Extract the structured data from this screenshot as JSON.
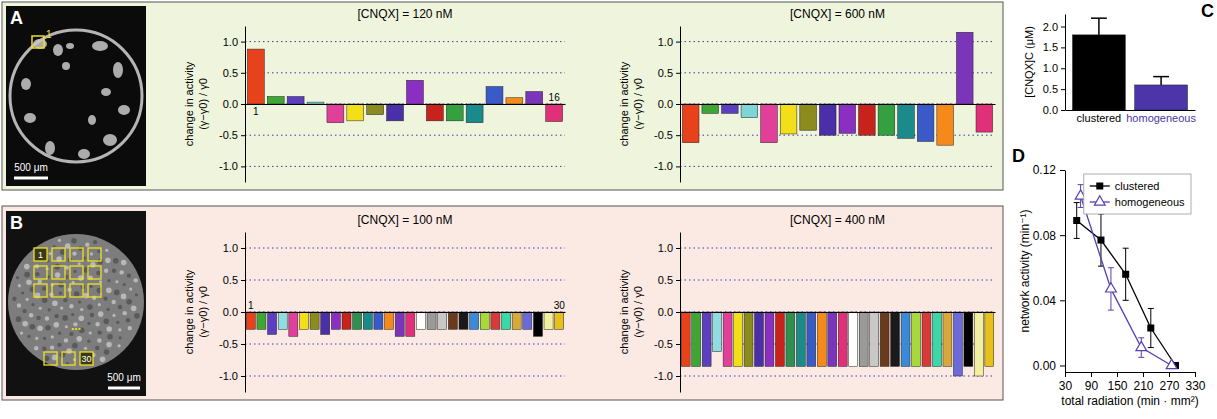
{
  "panel_labels": [
    "A",
    "B",
    "C",
    "D"
  ],
  "images": [
    {
      "scale_bar": "500 μm",
      "roi_labels": [
        "1"
      ]
    },
    {
      "scale_bar": "500 μm",
      "roi_labels": [
        "1",
        "...",
        "30"
      ]
    }
  ],
  "chart_data": [
    {
      "type": "bar",
      "title": "[CNQX] = 120 nM",
      "y_label": [
        "change in activity",
        "(γ−γ0) / γ0"
      ],
      "categories": [
        "1",
        null,
        null,
        null,
        null,
        null,
        null,
        null,
        null,
        null,
        null,
        null,
        null,
        null,
        null,
        "16"
      ],
      "values": [
        0.88,
        0.12,
        0.12,
        0.03,
        -0.3,
        -0.27,
        -0.17,
        -0.27,
        0.38,
        -0.27,
        -0.27,
        -0.3,
        0.28,
        0.1,
        0.2,
        -0.28
      ],
      "colors": [
        "#e8421c",
        "#3fa535",
        "#5b3fc0",
        "#7fd4d8",
        "#e0409a",
        "#f2df1a",
        "#8c8c1e",
        "#4b2fa8",
        "#8b2fc2",
        "#c8221c",
        "#35a040",
        "#1a8a8a",
        "#3a5ac8",
        "#f58a1a",
        "#7b35b8",
        "#e0307a"
      ],
      "ylim": [
        -1.25,
        1.25
      ],
      "yticks": [
        {
          "value": -1,
          "label": "-1.0"
        },
        -0.5,
        {
          "value": 0,
          "label": "0.0"
        },
        0.5,
        {
          "value": 1,
          "label": "1.0"
        }
      ],
      "grid": true
    },
    {
      "type": "bar",
      "title": "[CNQX] = 600 nM",
      "y_label": [
        "change in activity",
        "(γ−γ0) / γ0"
      ],
      "categories": [
        null,
        null,
        null,
        null,
        null,
        null,
        null,
        null,
        null,
        null,
        null,
        null,
        null,
        null,
        null,
        null
      ],
      "values": [
        -0.62,
        -0.15,
        -0.15,
        -0.22,
        -0.62,
        -0.48,
        -0.42,
        -0.5,
        -0.47,
        -0.5,
        -0.5,
        -0.55,
        -0.6,
        -0.66,
        1.15,
        -0.45
      ],
      "colors": [
        "#e8421c",
        "#3fa535",
        "#5b3fc0",
        "#7fd4d8",
        "#e0409a",
        "#f2df1a",
        "#8c8c1e",
        "#4b2fa8",
        "#8b2fc2",
        "#c8221c",
        "#35a040",
        "#1a8a8a",
        "#3a5ac8",
        "#f58a1a",
        "#7b35b8",
        "#e0307a"
      ],
      "ylim": [
        -1.25,
        1.25
      ],
      "yticks": [
        {
          "value": -1,
          "label": "-1.0"
        },
        -0.5,
        {
          "value": 0,
          "label": "0.0"
        },
        0.5,
        {
          "value": 1,
          "label": "1.0"
        }
      ],
      "grid": true
    },
    {
      "type": "bar",
      "title": "[CNQX] = 100 nM",
      "y_label": [
        "change in activity",
        "(γ−γ0) / γ0"
      ],
      "categories": [
        "1",
        null,
        null,
        null,
        null,
        null,
        null,
        null,
        null,
        null,
        null,
        null,
        null,
        null,
        null,
        null,
        null,
        null,
        null,
        null,
        null,
        null,
        null,
        null,
        null,
        null,
        null,
        null,
        null,
        "30"
      ],
      "values": [
        -0.27,
        -0.27,
        -0.35,
        -0.27,
        -0.38,
        -0.27,
        -0.27,
        -0.35,
        -0.27,
        -0.27,
        -0.27,
        -0.27,
        -0.27,
        -0.27,
        -0.38,
        -0.38,
        -0.27,
        -0.27,
        -0.27,
        -0.27,
        -0.27,
        -0.27,
        -0.27,
        -0.27,
        -0.27,
        -0.27,
        -0.27,
        -0.38,
        -0.27,
        -0.27
      ],
      "colors": [
        "#e8421c",
        "#3fa535",
        "#5b3fc0",
        "#8fdde0",
        "#e0409a",
        "#f2df1a",
        "#8c8c1e",
        "#4b2fa8",
        "#8b2fc2",
        "#c8221c",
        "#2f8f4f",
        "#1a8a8a",
        "#3a5ac8",
        "#f58a1a",
        "#7b35b8",
        "#e0307a",
        "#ffffff",
        "#9a9a9a",
        "#c8c8c8",
        "#6a3a1a",
        "#1a1a1a",
        "#3a8ad8",
        "#a8d83a",
        "#d83a3a",
        "#3ad8a8",
        "#d8a83a",
        "#6a6ad8",
        "#000000",
        "#f0f0a0",
        "#e8c01c"
      ],
      "ylim": [
        -1.25,
        1.25
      ],
      "yticks": [
        {
          "value": -1,
          "label": "-1.0"
        },
        -0.5,
        {
          "value": 0,
          "label": "0.0"
        },
        0.5,
        {
          "value": 1,
          "label": "1.0"
        }
      ],
      "grid": true
    },
    {
      "type": "bar",
      "title": "[CNQX] = 400 nM",
      "y_label": [
        "change in activity",
        "(γ−γ0) / γ0"
      ],
      "categories": [
        null,
        null,
        null,
        null,
        null,
        null,
        null,
        null,
        null,
        null,
        null,
        null,
        null,
        null,
        null,
        null,
        null,
        null,
        null,
        null,
        null,
        null,
        null,
        null,
        null,
        null,
        null,
        null,
        null,
        null
      ],
      "values": [
        -0.85,
        -0.85,
        -0.85,
        -0.62,
        -0.85,
        -0.85,
        -0.85,
        -0.85,
        -0.85,
        -0.85,
        -0.85,
        -0.85,
        -0.85,
        -0.85,
        -0.85,
        -0.85,
        -0.85,
        -0.85,
        -0.85,
        -0.85,
        -0.85,
        -0.85,
        -0.85,
        -0.85,
        -0.85,
        -0.85,
        -1.0,
        -0.85,
        -1.0,
        -0.85
      ],
      "colors": [
        "#e8421c",
        "#3fa535",
        "#5b3fc0",
        "#8fdde0",
        "#e0409a",
        "#f2df1a",
        "#8c8c1e",
        "#4b2fa8",
        "#8b2fc2",
        "#c8221c",
        "#2f8f4f",
        "#1a8a8a",
        "#3a5ac8",
        "#f58a1a",
        "#7b35b8",
        "#e0307a",
        "#ffffff",
        "#9a9a9a",
        "#c8c8c8",
        "#6a3a1a",
        "#1a1a1a",
        "#3a8ad8",
        "#a8d83a",
        "#d83a3a",
        "#3ad8a8",
        "#d8a83a",
        "#6a6ad8",
        "#000000",
        "#f0f0a0",
        "#e8c01c"
      ],
      "ylim": [
        -1.25,
        1.25
      ],
      "yticks": [
        {
          "value": -1,
          "label": "-1.0"
        },
        -0.5,
        {
          "value": 0,
          "label": "0.0"
        },
        0.5,
        {
          "value": 1,
          "label": "1.0"
        }
      ],
      "grid": true
    },
    {
      "type": "bar",
      "y_label": "[CNQX]C  (μM)",
      "categories": [
        "clustered",
        "homogeneous"
      ],
      "values": [
        1.8,
        0.6
      ],
      "errors": [
        0.4,
        0.2
      ],
      "colors": [
        "#000000",
        "#4b35a8"
      ],
      "ylim": [
        0,
        2.3
      ],
      "yticks": [
        {
          "value": 0,
          "label": "0.0"
        },
        0.5,
        {
          "value": 1,
          "label": "1.0"
        },
        1.5,
        {
          "value": 2,
          "label": "2.0"
        }
      ],
      "grid": false
    },
    {
      "type": "line",
      "x_label": "total radiation  (min · mm²)",
      "y_label": "network activity  (min⁻¹)",
      "xlim": [
        30,
        330
      ],
      "xticks": [
        30,
        90,
        150,
        210,
        270,
        330
      ],
      "ylim": [
        -0.004,
        0.12
      ],
      "yticks": [
        {
          "value": 0,
          "label": "0.00"
        },
        0.04,
        0.08,
        0.12
      ],
      "legend": "top-right",
      "series": [
        {
          "name": "clustered",
          "color": "#000000",
          "marker": "square",
          "x": [
            57,
            113,
            170,
            228,
            285
          ],
          "values": [
            0.089,
            0.077,
            0.056,
            0.023,
            0.0
          ],
          "errors": [
            0.011,
            0.016,
            0.016,
            0.012,
            0.001
          ]
        },
        {
          "name": "homogeneous",
          "color": "#5a3fb0",
          "marker": "triangle",
          "x": [
            66,
            136,
            206,
            276
          ],
          "values": [
            0.104,
            0.047,
            0.011,
            0.0
          ],
          "errors": [
            0.007,
            0.013,
            0.006,
            0.001
          ]
        }
      ]
    }
  ]
}
